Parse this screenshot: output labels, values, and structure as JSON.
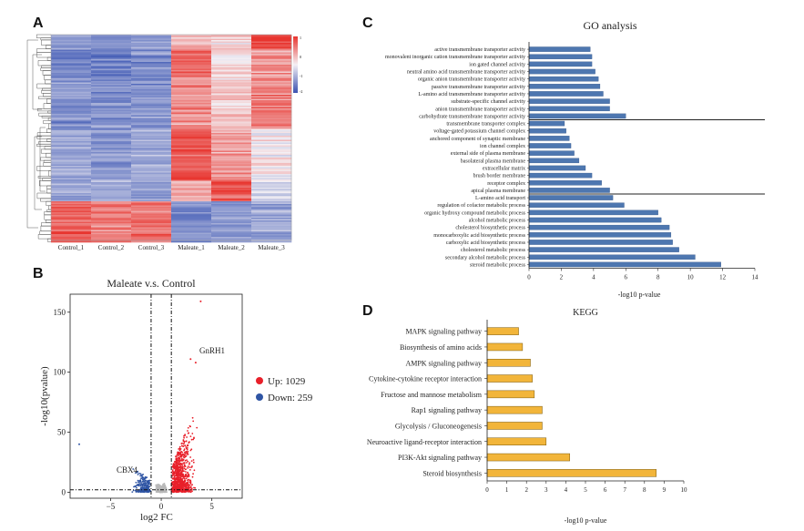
{
  "panels": {
    "A": {
      "label": "A",
      "samples": [
        "Control_1",
        "Control_2",
        "Control_3",
        "Maleate_1",
        "Maleate_2",
        "Maleate_3"
      ],
      "colorbar_ticks": [
        "1",
        "0",
        "-1",
        "-2"
      ],
      "colors": {
        "high": "#e8352f",
        "low": "#4a62b8",
        "mid": "#f4f0f4"
      }
    },
    "B": {
      "label": "B",
      "title": "Maleate v.s. Control",
      "xlabel": "log2 FC",
      "ylabel": "-log10(pvalue)",
      "annotations": [
        "GnRH1",
        "CBX4"
      ],
      "legend": {
        "up": "Up: 1029",
        "down": "Down: 259"
      },
      "colors": {
        "up": "#e8202a",
        "down": "#2f55a4",
        "ns": "#b8b8b8"
      }
    },
    "C": {
      "label": "C",
      "title": "GO analysis",
      "xlabel": "-log10 p-value",
      "bar_color": "#4e77b0"
    },
    "D": {
      "label": "D",
      "title": "KEGG",
      "xlabel": "-log10 p-value",
      "bar_color": "#f2b53a"
    }
  },
  "chart_data": [
    {
      "type": "heatmap",
      "panel": "A",
      "columns": [
        "Control_1",
        "Control_2",
        "Control_3",
        "Maleate_1",
        "Maleate_2",
        "Maleate_3"
      ],
      "color_scale": {
        "min": -2,
        "max": 1
      },
      "row_blocks": [
        {
          "fraction": 0.07,
          "values": [
            -0.6,
            -0.7,
            -0.6,
            0.3,
            0.2,
            0.9
          ]
        },
        {
          "fraction": 0.13,
          "values": [
            -0.8,
            -0.8,
            -0.7,
            0.7,
            0.1,
            0.5
          ]
        },
        {
          "fraction": 0.25,
          "values": [
            -0.6,
            -0.7,
            -0.6,
            0.5,
            0.2,
            0.6
          ]
        },
        {
          "fraction": 0.25,
          "values": [
            -0.5,
            -0.6,
            -0.5,
            0.8,
            0.4,
            0.0
          ]
        },
        {
          "fraction": 0.1,
          "values": [
            -0.5,
            -0.5,
            -0.6,
            0.3,
            0.8,
            -0.2
          ]
        },
        {
          "fraction": 0.2,
          "values": [
            0.7,
            0.6,
            0.7,
            -0.7,
            -0.6,
            -0.5
          ]
        }
      ]
    },
    {
      "type": "scatter",
      "panel": "B",
      "title": "Maleate v.s. Control",
      "xlabel": "log2 FC",
      "ylabel": "-log10(pvalue)",
      "xlim": [
        -9,
        8
      ],
      "ylim": [
        -5,
        165
      ],
      "xticks": [
        -5,
        0,
        5
      ],
      "yticks": [
        0,
        50,
        100,
        150
      ],
      "thresholds": {
        "log2fc": [
          -1,
          1
        ],
        "pvalue_line": 2
      },
      "series": [
        {
          "name": "Up: 1029",
          "count": 1029,
          "color": "#e8202a"
        },
        {
          "name": "Down: 259",
          "count": 259,
          "color": "#2f55a4"
        }
      ],
      "labeled_points": [
        {
          "label": "GnRH1",
          "x": 3.5,
          "y": 115
        },
        {
          "label": "CBX4",
          "x": -1.8,
          "y": 15
        }
      ],
      "extreme_points": [
        {
          "x": 3.9,
          "y": 159
        },
        {
          "x": 2.9,
          "y": 111
        },
        {
          "x": 3.4,
          "y": 108
        },
        {
          "x": -8.1,
          "y": 40
        }
      ]
    },
    {
      "type": "bar",
      "panel": "C",
      "orientation": "horizontal",
      "title": "GO analysis",
      "xlabel": "-log10 p-value",
      "xlim": [
        0,
        14
      ],
      "xticks": [
        0,
        2,
        4,
        6,
        8,
        10,
        12,
        14
      ],
      "groups": [
        {
          "categories": [
            "active transmembrane transporter activity",
            "monovalent inorganic cation transmembrane transporter activity",
            "ion gated channel activity",
            "neutral amino acid transmembrane transporter activity",
            "organic anion transmembrane transporter activity",
            "passive transmembrane transporter activity",
            "L-amino acid transmembrane transporter activity",
            "substrate-specific channel activity",
            "anion transmembrane transporter activity",
            "carbohydrate transmembrane transporter activity"
          ],
          "values": [
            3.8,
            3.9,
            3.9,
            4.1,
            4.3,
            4.4,
            4.6,
            5.0,
            5.0,
            6.0
          ]
        },
        {
          "categories": [
            "transmembrane transporter complex",
            "voltage-gated potassium channel complex",
            "anchored component of synaptic membrane",
            "ion channel complex",
            "external side of plasma membrane",
            "basolateral plasma membrane",
            "extracellular matrix",
            "brush border membrane",
            "receptor complex",
            "apical plasma membrane"
          ],
          "values": [
            2.2,
            2.3,
            2.5,
            2.6,
            2.8,
            3.1,
            3.5,
            3.9,
            4.5,
            5.0
          ]
        },
        {
          "categories": [
            "L-amino acid transport",
            "regulation of cofactor metabolic process",
            "organic hydroxy compound metabolic process",
            "alcohol metabolic process",
            "cholesterol biosynthetic process",
            "monocarboxylic acid biosynthetic process",
            "carboxylic acid biosynthetic process",
            "cholesterol metabolic process",
            "secondary alcohol metabolic process",
            "steroid metabolic process"
          ],
          "values": [
            5.2,
            5.9,
            8.0,
            8.2,
            8.7,
            8.8,
            8.9,
            9.3,
            10.3,
            11.9
          ]
        }
      ]
    },
    {
      "type": "bar",
      "panel": "D",
      "orientation": "horizontal",
      "title": "KEGG",
      "xlabel": "-log10 p-value",
      "xlim": [
        0,
        10
      ],
      "xticks": [
        0,
        1,
        2,
        3,
        4,
        5,
        6,
        7,
        8,
        9,
        10
      ],
      "categories": [
        "MAPK signaling pathway",
        "Biosynthesis of amino acids",
        "AMPK signaling pathway",
        "Cytokine-cytokine receptor interaction",
        "Fructose and mannose metabolism",
        "Rap1 signaling pathway",
        "Glycolysis / Gluconeogenesis",
        "Neuroactive ligand-receptor interaction",
        "PI3K-Akt signaling pathway",
        "Steroid biosynthesis"
      ],
      "values": [
        1.6,
        1.8,
        2.2,
        2.3,
        2.4,
        2.8,
        2.8,
        3.0,
        4.2,
        8.6
      ]
    }
  ]
}
